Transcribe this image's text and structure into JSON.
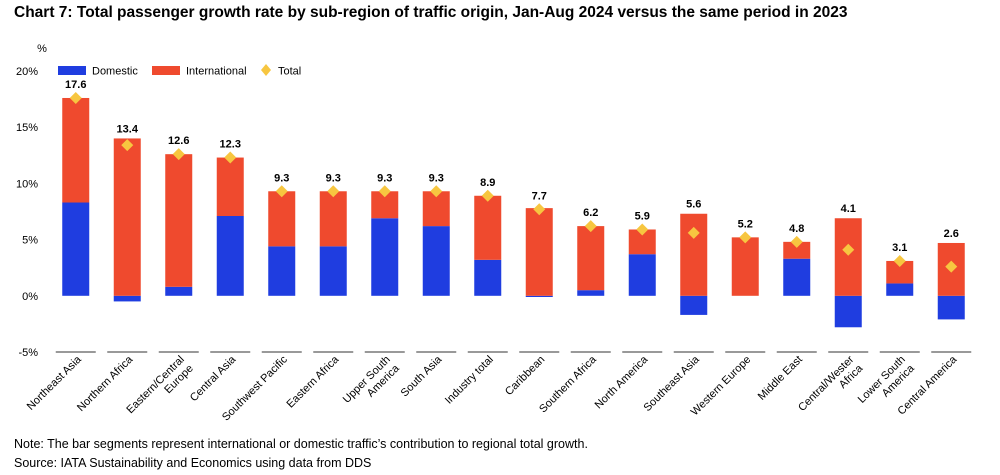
{
  "title": "Chart 7: Total passenger growth rate by sub-region of traffic origin, Jan-Aug 2024 versus the same period in 2023",
  "note": "Note: The bar segments represent international or domestic traffic’s contribution to regional total growth.",
  "source": "Source: IATA Sustainability and Economics using data from DDS",
  "colors": {
    "domestic": "#1f3de0",
    "international": "#ef4a2e",
    "total": "#f7c640"
  },
  "chart_data": {
    "type": "bar",
    "stacked": true,
    "yunit": "%",
    "ylim": [
      -5,
      20
    ],
    "yticks": [
      -5,
      0,
      5,
      10,
      15,
      20
    ],
    "ytick_labels": [
      "-5%",
      "0%",
      "5%",
      "10%",
      "15%",
      "20%"
    ],
    "grid": false,
    "legend": {
      "position": "top-left",
      "entries": [
        "Domestic",
        "International",
        "Total"
      ]
    },
    "categories": [
      [
        "Northeast Asia"
      ],
      [
        "Northern Africa"
      ],
      [
        "Eastern/Central",
        "Europe"
      ],
      [
        "Central Asia"
      ],
      [
        "Southwest Pacific"
      ],
      [
        "Eastern Africa"
      ],
      [
        "Upper South",
        "America"
      ],
      [
        "South Asia"
      ],
      [
        "Industry total"
      ],
      [
        "Caribbean"
      ],
      [
        "Southern Africa"
      ],
      [
        "North America"
      ],
      [
        "Southeast Asia"
      ],
      [
        "Western Europe"
      ],
      [
        "Middle East"
      ],
      [
        "Central/Wester",
        "Africa"
      ],
      [
        "Lower South",
        "America"
      ],
      [
        "Central America"
      ]
    ],
    "series": [
      {
        "name": "Domestic",
        "type": "bar",
        "values": [
          8.3,
          -0.5,
          0.8,
          7.1,
          4.4,
          4.4,
          6.9,
          6.2,
          3.2,
          -0.1,
          0.5,
          3.7,
          -1.7,
          0.0,
          3.3,
          -2.8,
          1.1,
          -2.1
        ]
      },
      {
        "name": "International",
        "type": "bar",
        "values": [
          9.3,
          14.0,
          11.8,
          5.2,
          4.9,
          4.9,
          2.4,
          3.1,
          5.7,
          7.8,
          5.7,
          2.2,
          7.3,
          5.2,
          1.5,
          6.9,
          2.0,
          4.7
        ]
      },
      {
        "name": "Total",
        "type": "marker",
        "values": [
          17.6,
          13.4,
          12.6,
          12.3,
          9.3,
          9.3,
          9.3,
          9.3,
          8.9,
          7.7,
          6.2,
          5.9,
          5.6,
          5.2,
          4.8,
          4.1,
          3.1,
          2.6
        ],
        "labels": [
          "17.6",
          "13.4",
          "12.6",
          "12.3",
          "9.3",
          "9.3",
          "9.3",
          "9.3",
          "8.9",
          "7.7",
          "6.2",
          "5.9",
          "5.6",
          "5.2",
          "4.8",
          "4.1",
          "3.1",
          "2.6"
        ]
      }
    ]
  }
}
